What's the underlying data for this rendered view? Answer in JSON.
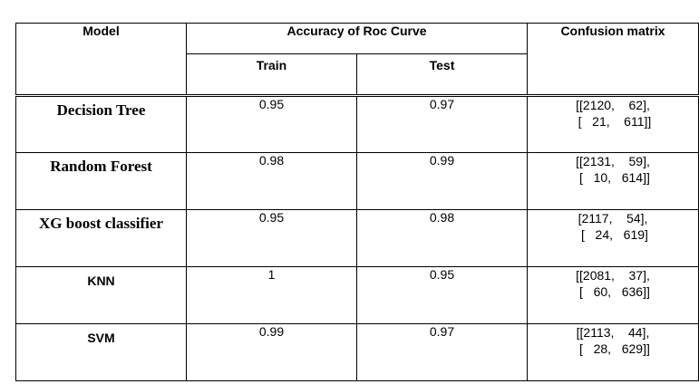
{
  "headers": {
    "model": "Model",
    "accuracy": "Accuracy of Roc Curve",
    "confusion": "Confusion matrix",
    "train": "Train",
    "test": "Test"
  },
  "rows": [
    {
      "model": "Decision Tree",
      "train": "0.95",
      "test": "0.97",
      "cm_line1": "[[2120,    62],",
      "cm_line2": " [   21,    611]]"
    },
    {
      "model": "Random Forest",
      "train": "0.98",
      "test": "0.99",
      "cm_line1": "[[2131,    59],",
      "cm_line2": " [   10,   614]]"
    },
    {
      "model": "XG boost classifier",
      "train": "0.95",
      "test": "0.98",
      "cm_line1": "[2117,    54],",
      "cm_line2": " [   24,   619]"
    },
    {
      "model": "KNN",
      "train": "1",
      "test": "0.95",
      "cm_line1": "[[2081,    37],",
      "cm_line2": " [   60,   636]]"
    },
    {
      "model": "SVM",
      "train": "0.99",
      "test": "0.97",
      "cm_line1": "[[2113,    44],",
      "cm_line2": " [   28,   629]]"
    }
  ]
}
